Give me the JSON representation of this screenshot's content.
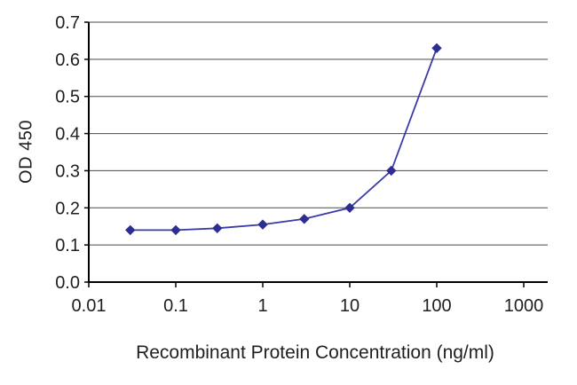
{
  "chart_data": {
    "type": "line",
    "title": "",
    "xlabel": "Recombinant Protein Concentration (ng/ml)",
    "ylabel": "OD 450",
    "x_scale": "log",
    "xlim": [
      0.01,
      1000
    ],
    "ylim": [
      0.0,
      0.7
    ],
    "x_tick_values": [
      0.01,
      0.1,
      1,
      10,
      100,
      1000
    ],
    "x_tick_labels": [
      "0.01",
      "0.1",
      "1",
      "10",
      "100",
      "1000"
    ],
    "y_tick_values": [
      0.0,
      0.1,
      0.2,
      0.3,
      0.4,
      0.5,
      0.6,
      0.7
    ],
    "y_tick_labels": [
      "0.0",
      "0.1",
      "0.2",
      "0.3",
      "0.4",
      "0.5",
      "0.6",
      "0.7"
    ],
    "grid": "horizontal",
    "legend": "none",
    "series": [
      {
        "name": "OD 450",
        "marker": "diamond",
        "x": [
          0.03,
          0.1,
          0.3,
          1,
          3,
          10,
          30,
          100
        ],
        "y": [
          0.14,
          0.14,
          0.145,
          0.155,
          0.17,
          0.2,
          0.3,
          0.63
        ]
      }
    ]
  },
  "colors": {
    "background": "#ffffff",
    "axis": "#000000",
    "grid": "#4a4a4a",
    "text": "#1f1f1f",
    "line": "#3a3aa8",
    "marker": "#2e2e92"
  }
}
